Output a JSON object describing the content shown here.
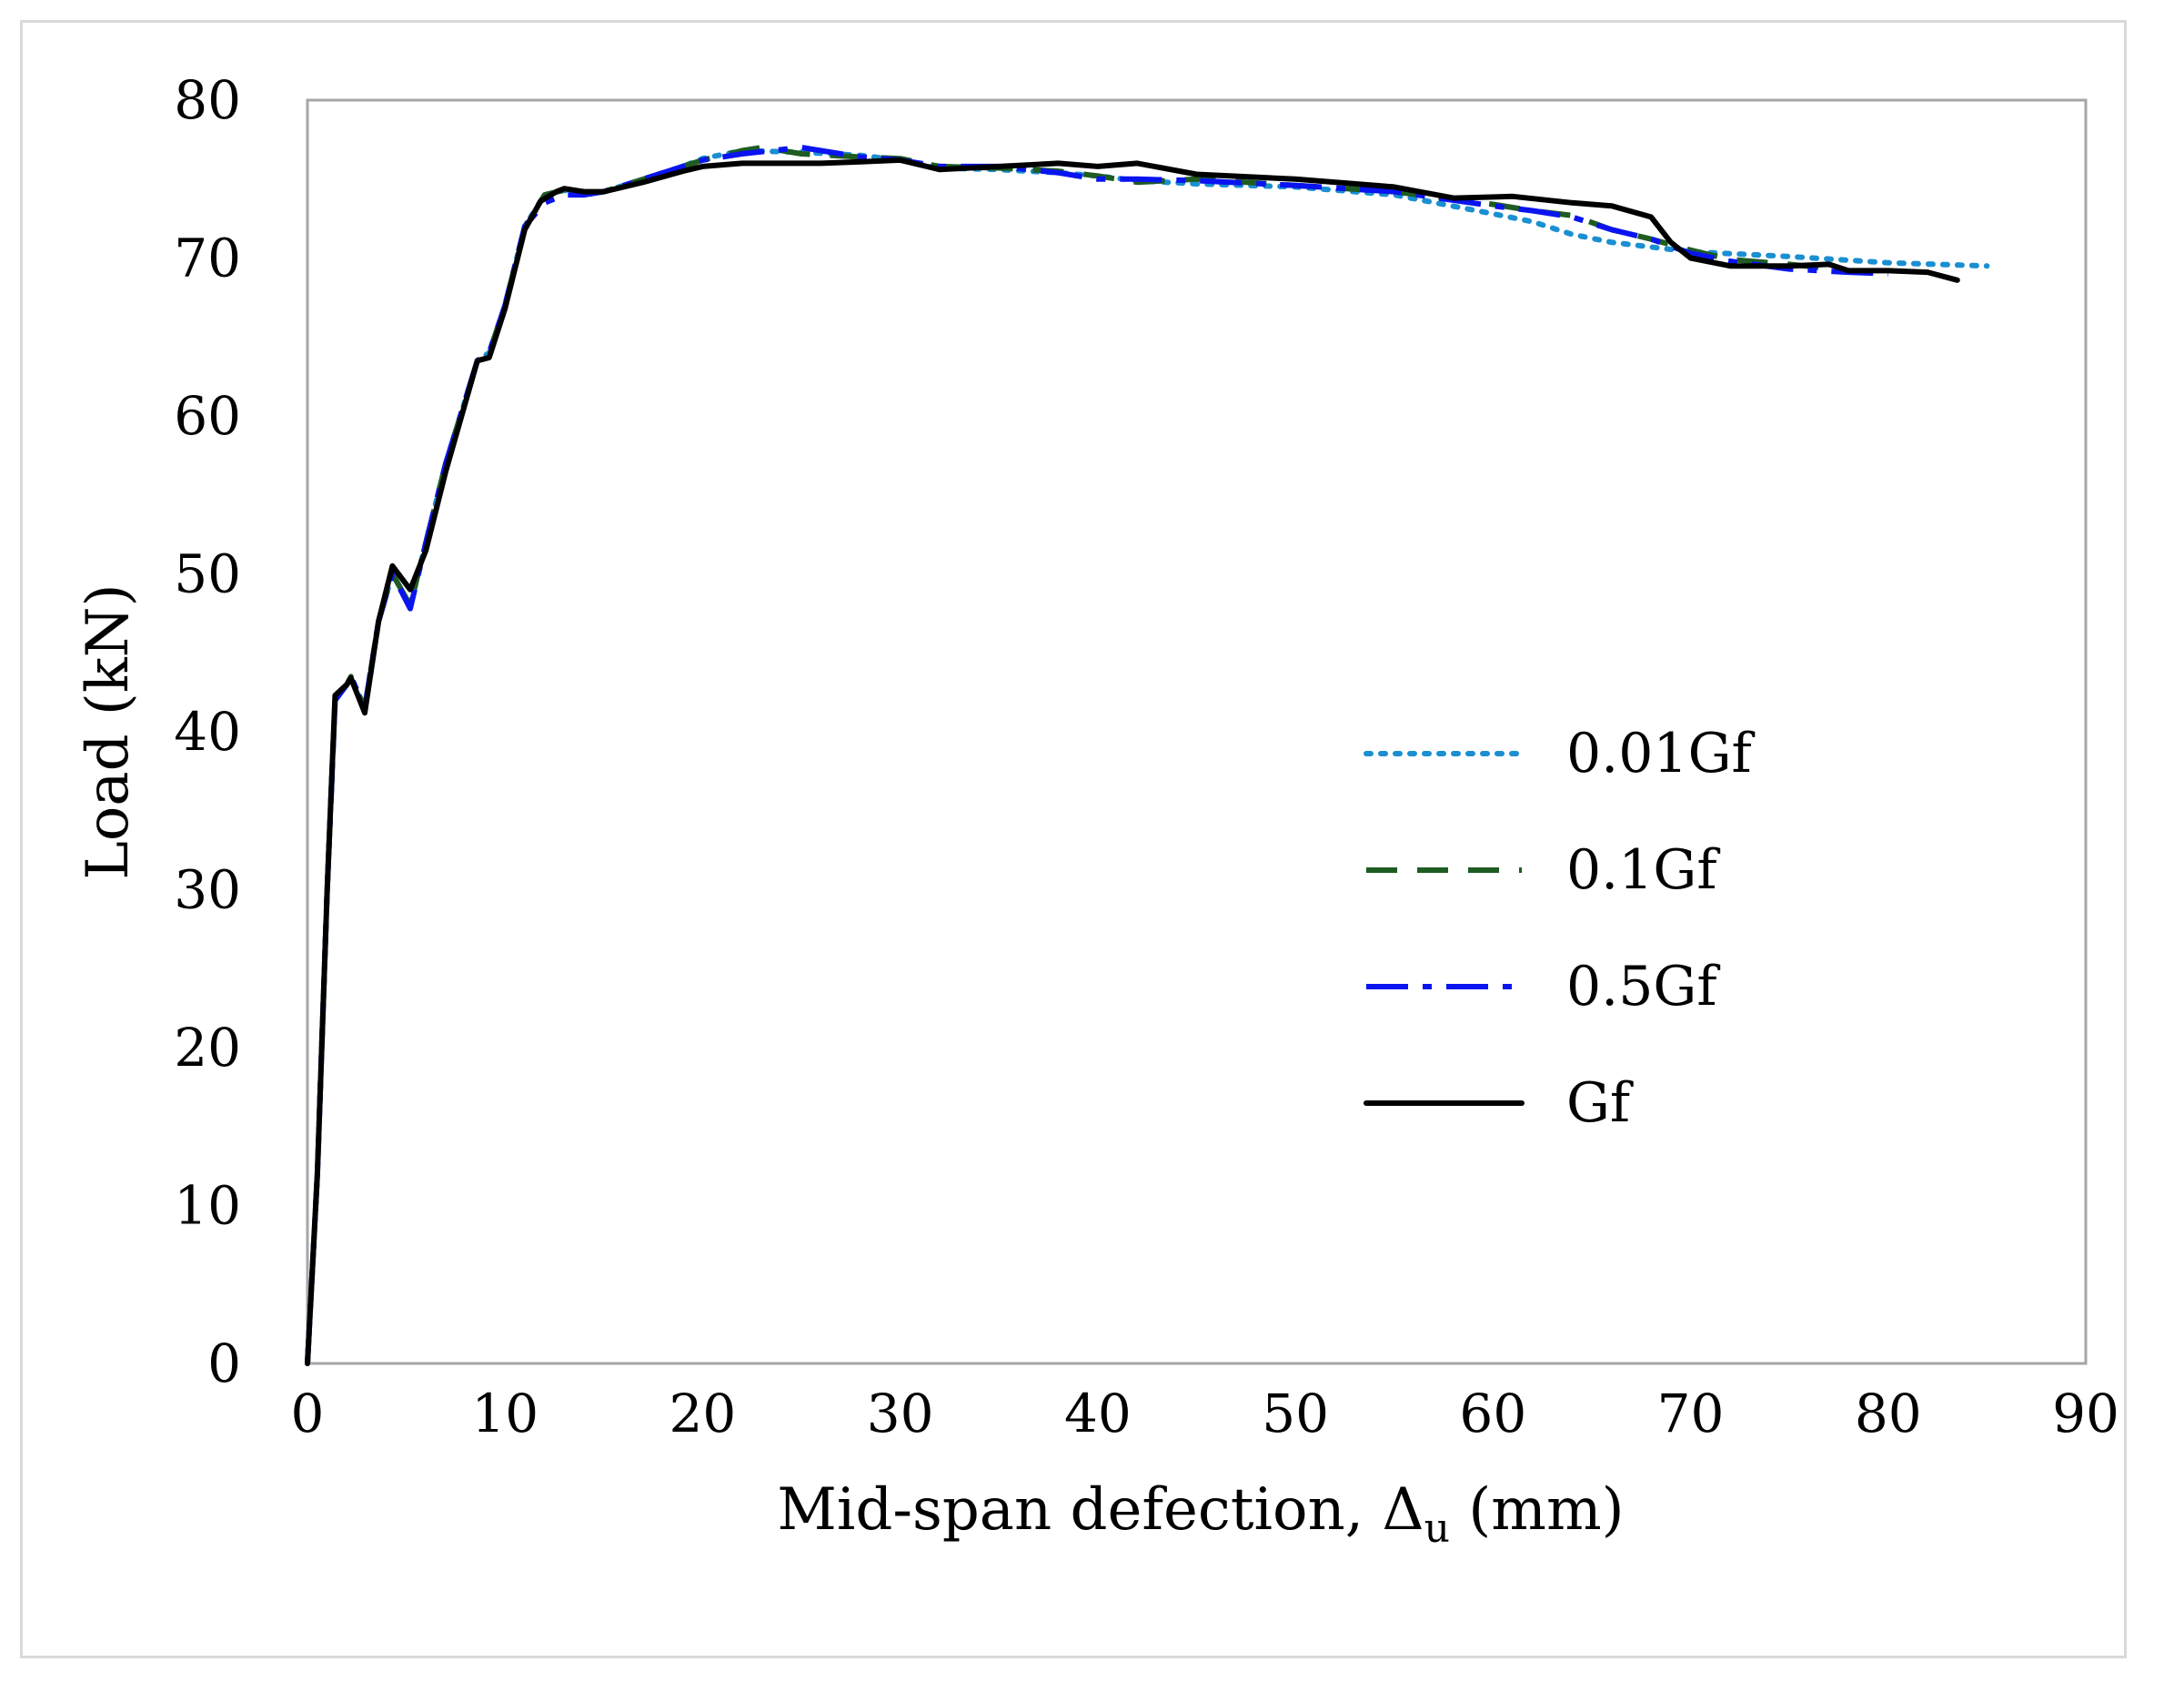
{
  "chart_data": {
    "type": "line",
    "title": "",
    "xlabel": "Mid-span defection, Δu (mm)",
    "xlabel_parts": {
      "main": "Mid-span defection, Δ",
      "sub": "u",
      "unit": " (mm)"
    },
    "ylabel": "Load (kN)",
    "xlim": [
      0,
      90
    ],
    "ylim": [
      0,
      80
    ],
    "xticks": [
      0,
      10,
      20,
      30,
      40,
      50,
      60,
      70,
      80,
      90
    ],
    "yticks": [
      0,
      10,
      20,
      30,
      40,
      50,
      60,
      70,
      80
    ],
    "grid": false,
    "legend_position": "center-right",
    "series": [
      {
        "name": "0.01Gf",
        "color": "#1a8fd1",
        "dash": "dotted",
        "points": [
          [
            0,
            0
          ],
          [
            0.5,
            12
          ],
          [
            1,
            30
          ],
          [
            1.4,
            42
          ],
          [
            2,
            43
          ],
          [
            2.2,
            43.5
          ],
          [
            2.9,
            41.5
          ],
          [
            3.6,
            47
          ],
          [
            4.3,
            50
          ],
          [
            5.2,
            48
          ],
          [
            6,
            52
          ],
          [
            7,
            57
          ],
          [
            8.6,
            63.5
          ],
          [
            9.2,
            64
          ],
          [
            10,
            67
          ],
          [
            11,
            72
          ],
          [
            12,
            74
          ],
          [
            13,
            74.3
          ],
          [
            14,
            74
          ],
          [
            15,
            74.2
          ],
          [
            17,
            75
          ],
          [
            19,
            75.8
          ],
          [
            20,
            76.3
          ],
          [
            22,
            76.8
          ],
          [
            25,
            76.7
          ],
          [
            28,
            76.5
          ],
          [
            30,
            76.2
          ],
          [
            32,
            75.7
          ],
          [
            35,
            75.6
          ],
          [
            38,
            75.4
          ],
          [
            40,
            75.2
          ],
          [
            42,
            74.9
          ],
          [
            45,
            74.7
          ],
          [
            50,
            74.5
          ],
          [
            55,
            74
          ],
          [
            60,
            72.8
          ],
          [
            62,
            72.3
          ],
          [
            64,
            71.5
          ],
          [
            66,
            71
          ],
          [
            68,
            70.7
          ],
          [
            70,
            70.4
          ],
          [
            75,
            70.1
          ],
          [
            80,
            69.7
          ],
          [
            85,
            69.5
          ]
        ]
      },
      {
        "name": "0.1Gf",
        "color": "#1e5c22",
        "dash": "dashed",
        "points": [
          [
            0,
            0
          ],
          [
            0.5,
            12
          ],
          [
            1,
            30
          ],
          [
            1.4,
            42
          ],
          [
            2,
            43
          ],
          [
            2.2,
            43.5
          ],
          [
            2.9,
            41.5
          ],
          [
            3.6,
            47
          ],
          [
            4.3,
            50
          ],
          [
            5.2,
            48
          ],
          [
            6,
            52
          ],
          [
            7,
            57
          ],
          [
            8.6,
            63.5
          ],
          [
            9.2,
            64
          ],
          [
            10,
            67
          ],
          [
            11,
            72
          ],
          [
            12,
            74
          ],
          [
            13,
            74.3
          ],
          [
            14,
            74
          ],
          [
            15,
            74.2
          ],
          [
            17,
            75
          ],
          [
            19,
            75.8
          ],
          [
            20,
            76.2
          ],
          [
            22,
            76.8
          ],
          [
            23,
            77
          ],
          [
            25,
            76.6
          ],
          [
            28,
            76.4
          ],
          [
            30,
            76.3
          ],
          [
            32,
            75.8
          ],
          [
            35,
            75.7
          ],
          [
            38,
            75.5
          ],
          [
            40,
            75.2
          ],
          [
            42,
            74.8
          ],
          [
            45,
            75
          ],
          [
            50,
            74.6
          ],
          [
            55,
            74.2
          ],
          [
            60,
            73.4
          ],
          [
            62,
            73
          ],
          [
            64,
            72.7
          ],
          [
            66,
            71.8
          ],
          [
            68,
            71.2
          ],
          [
            70,
            70.5
          ],
          [
            72,
            69.9
          ],
          [
            75,
            69.6
          ],
          [
            78,
            69.2
          ],
          [
            80,
            69.1
          ]
        ]
      },
      {
        "name": "0.5Gf",
        "color": "#0a14f0",
        "dash": "dashdot",
        "points": [
          [
            0,
            0
          ],
          [
            0.5,
            12
          ],
          [
            1,
            30
          ],
          [
            1.4,
            42
          ],
          [
            2,
            43
          ],
          [
            2.2,
            43.5
          ],
          [
            2.9,
            41.5
          ],
          [
            3.6,
            47
          ],
          [
            4.3,
            50
          ],
          [
            5.2,
            47.8
          ],
          [
            6,
            52
          ],
          [
            7,
            57
          ],
          [
            8.6,
            63.5
          ],
          [
            9.2,
            64
          ],
          [
            10,
            67
          ],
          [
            11,
            72
          ],
          [
            12,
            73.5
          ],
          [
            13,
            74
          ],
          [
            14,
            74
          ],
          [
            15,
            74.2
          ],
          [
            17,
            75
          ],
          [
            19,
            75.8
          ],
          [
            20,
            76.2
          ],
          [
            22,
            76.6
          ],
          [
            25,
            77
          ],
          [
            28,
            76.4
          ],
          [
            30,
            76.2
          ],
          [
            32,
            75.8
          ],
          [
            35,
            75.8
          ],
          [
            38,
            75.4
          ],
          [
            40,
            75
          ],
          [
            42,
            75
          ],
          [
            45,
            74.9
          ],
          [
            50,
            74.6
          ],
          [
            55,
            74.2
          ],
          [
            60,
            73.3
          ],
          [
            62,
            73
          ],
          [
            64,
            72.6
          ],
          [
            66,
            71.8
          ],
          [
            68,
            71.2
          ],
          [
            70,
            70.3
          ],
          [
            72,
            69.8
          ],
          [
            75,
            69.3
          ],
          [
            78,
            69.1
          ],
          [
            80,
            69
          ]
        ]
      },
      {
        "name": "Gf",
        "color": "#000000",
        "dash": "solid",
        "points": [
          [
            0,
            0
          ],
          [
            0.5,
            12
          ],
          [
            1,
            30
          ],
          [
            1.4,
            42.3
          ],
          [
            2,
            43
          ],
          [
            2.2,
            43.4
          ],
          [
            2.9,
            41.2
          ],
          [
            3.6,
            47
          ],
          [
            4.3,
            50.5
          ],
          [
            5.2,
            49
          ],
          [
            6,
            51.5
          ],
          [
            7,
            56.5
          ],
          [
            8.6,
            63.5
          ],
          [
            9.2,
            63.7
          ],
          [
            10,
            66.8
          ],
          [
            11,
            71.8
          ],
          [
            11.8,
            73.6
          ],
          [
            12.6,
            74.2
          ],
          [
            13,
            74.4
          ],
          [
            14,
            74.2
          ],
          [
            15,
            74.2
          ],
          [
            17,
            74.8
          ],
          [
            19,
            75.5
          ],
          [
            20,
            75.8
          ],
          [
            22,
            76
          ],
          [
            24,
            76
          ],
          [
            26,
            76
          ],
          [
            28,
            76.1
          ],
          [
            30,
            76.2
          ],
          [
            32,
            75.6
          ],
          [
            35,
            75.8
          ],
          [
            38,
            76
          ],
          [
            40,
            75.8
          ],
          [
            42,
            76
          ],
          [
            45,
            75.3
          ],
          [
            50,
            75
          ],
          [
            55,
            74.5
          ],
          [
            58,
            73.8
          ],
          [
            61,
            73.9
          ],
          [
            64,
            73.5
          ],
          [
            66,
            73.3
          ],
          [
            68,
            72.6
          ],
          [
            69,
            71
          ],
          [
            70,
            70
          ],
          [
            72,
            69.5
          ],
          [
            75,
            69.5
          ],
          [
            77,
            69.6
          ],
          [
            78,
            69.2
          ],
          [
            80,
            69.2
          ],
          [
            82,
            69.1
          ],
          [
            83.5,
            68.6
          ]
        ]
      }
    ]
  }
}
